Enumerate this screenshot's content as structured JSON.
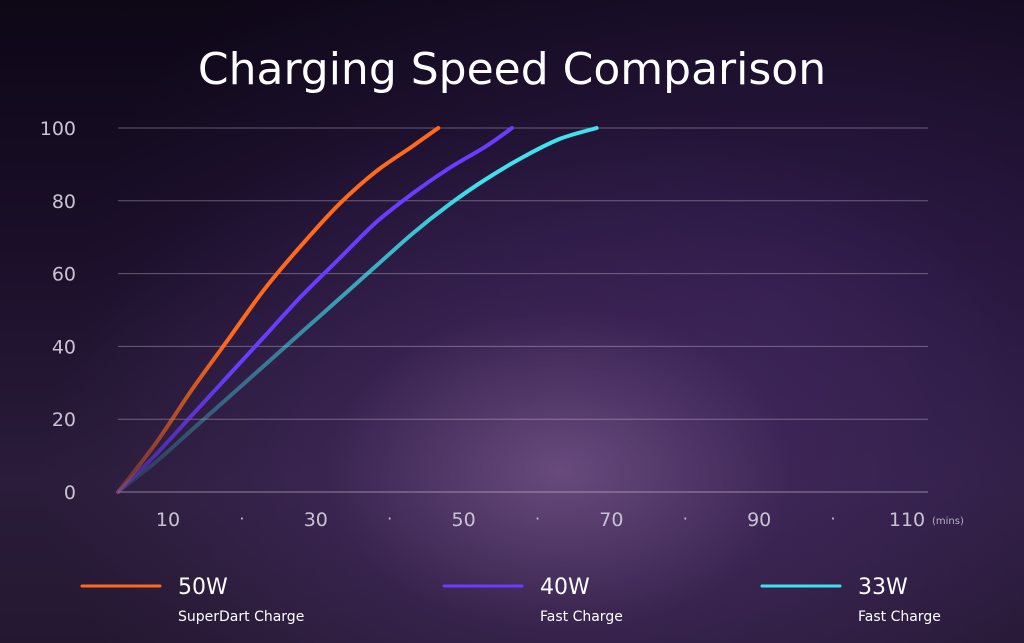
{
  "chart_data": {
    "type": "line",
    "title": "Charging Speed Comparison",
    "xlabel": "",
    "x_unit": "(mins)",
    "ylabel": "",
    "xlim": [
      0,
      110
    ],
    "ylim": [
      0,
      100
    ],
    "x_tick_labels": [
      "10",
      "30",
      "50",
      "70",
      "90",
      "110"
    ],
    "x_tick_separator": "·",
    "y_tick_labels": [
      "0",
      "20",
      "40",
      "60",
      "80",
      "100"
    ],
    "grid": "horizontal",
    "legend_position": "bottom",
    "series": [
      {
        "name": "50W",
        "description": "SuperDart Charge",
        "color": "#ff6a1a",
        "points": [
          [
            0,
            0
          ],
          [
            5,
            13
          ],
          [
            10,
            28
          ],
          [
            15,
            42
          ],
          [
            20,
            56
          ],
          [
            25,
            68
          ],
          [
            30,
            79
          ],
          [
            35,
            88
          ],
          [
            40,
            95
          ],
          [
            43.5,
            100
          ]
        ]
      },
      {
        "name": "40W",
        "description": "Fast Charge",
        "color": "#6a3cff",
        "points": [
          [
            0,
            0
          ],
          [
            5,
            10
          ],
          [
            10,
            21
          ],
          [
            15,
            32
          ],
          [
            20,
            43
          ],
          [
            25,
            54
          ],
          [
            30,
            64
          ],
          [
            35,
            74
          ],
          [
            40,
            82
          ],
          [
            45,
            89
          ],
          [
            50,
            95
          ],
          [
            53.5,
            100
          ]
        ]
      },
      {
        "name": "33W",
        "description": "Fast Charge",
        "color": "#3fe3ee",
        "points": [
          [
            0,
            0
          ],
          [
            5,
            8
          ],
          [
            10,
            17
          ],
          [
            15,
            26
          ],
          [
            20,
            35
          ],
          [
            25,
            44
          ],
          [
            30,
            53
          ],
          [
            35,
            62
          ],
          [
            40,
            71
          ],
          [
            45,
            79
          ],
          [
            50,
            86
          ],
          [
            55,
            92
          ],
          [
            60,
            97
          ],
          [
            65,
            100
          ]
        ]
      }
    ]
  }
}
